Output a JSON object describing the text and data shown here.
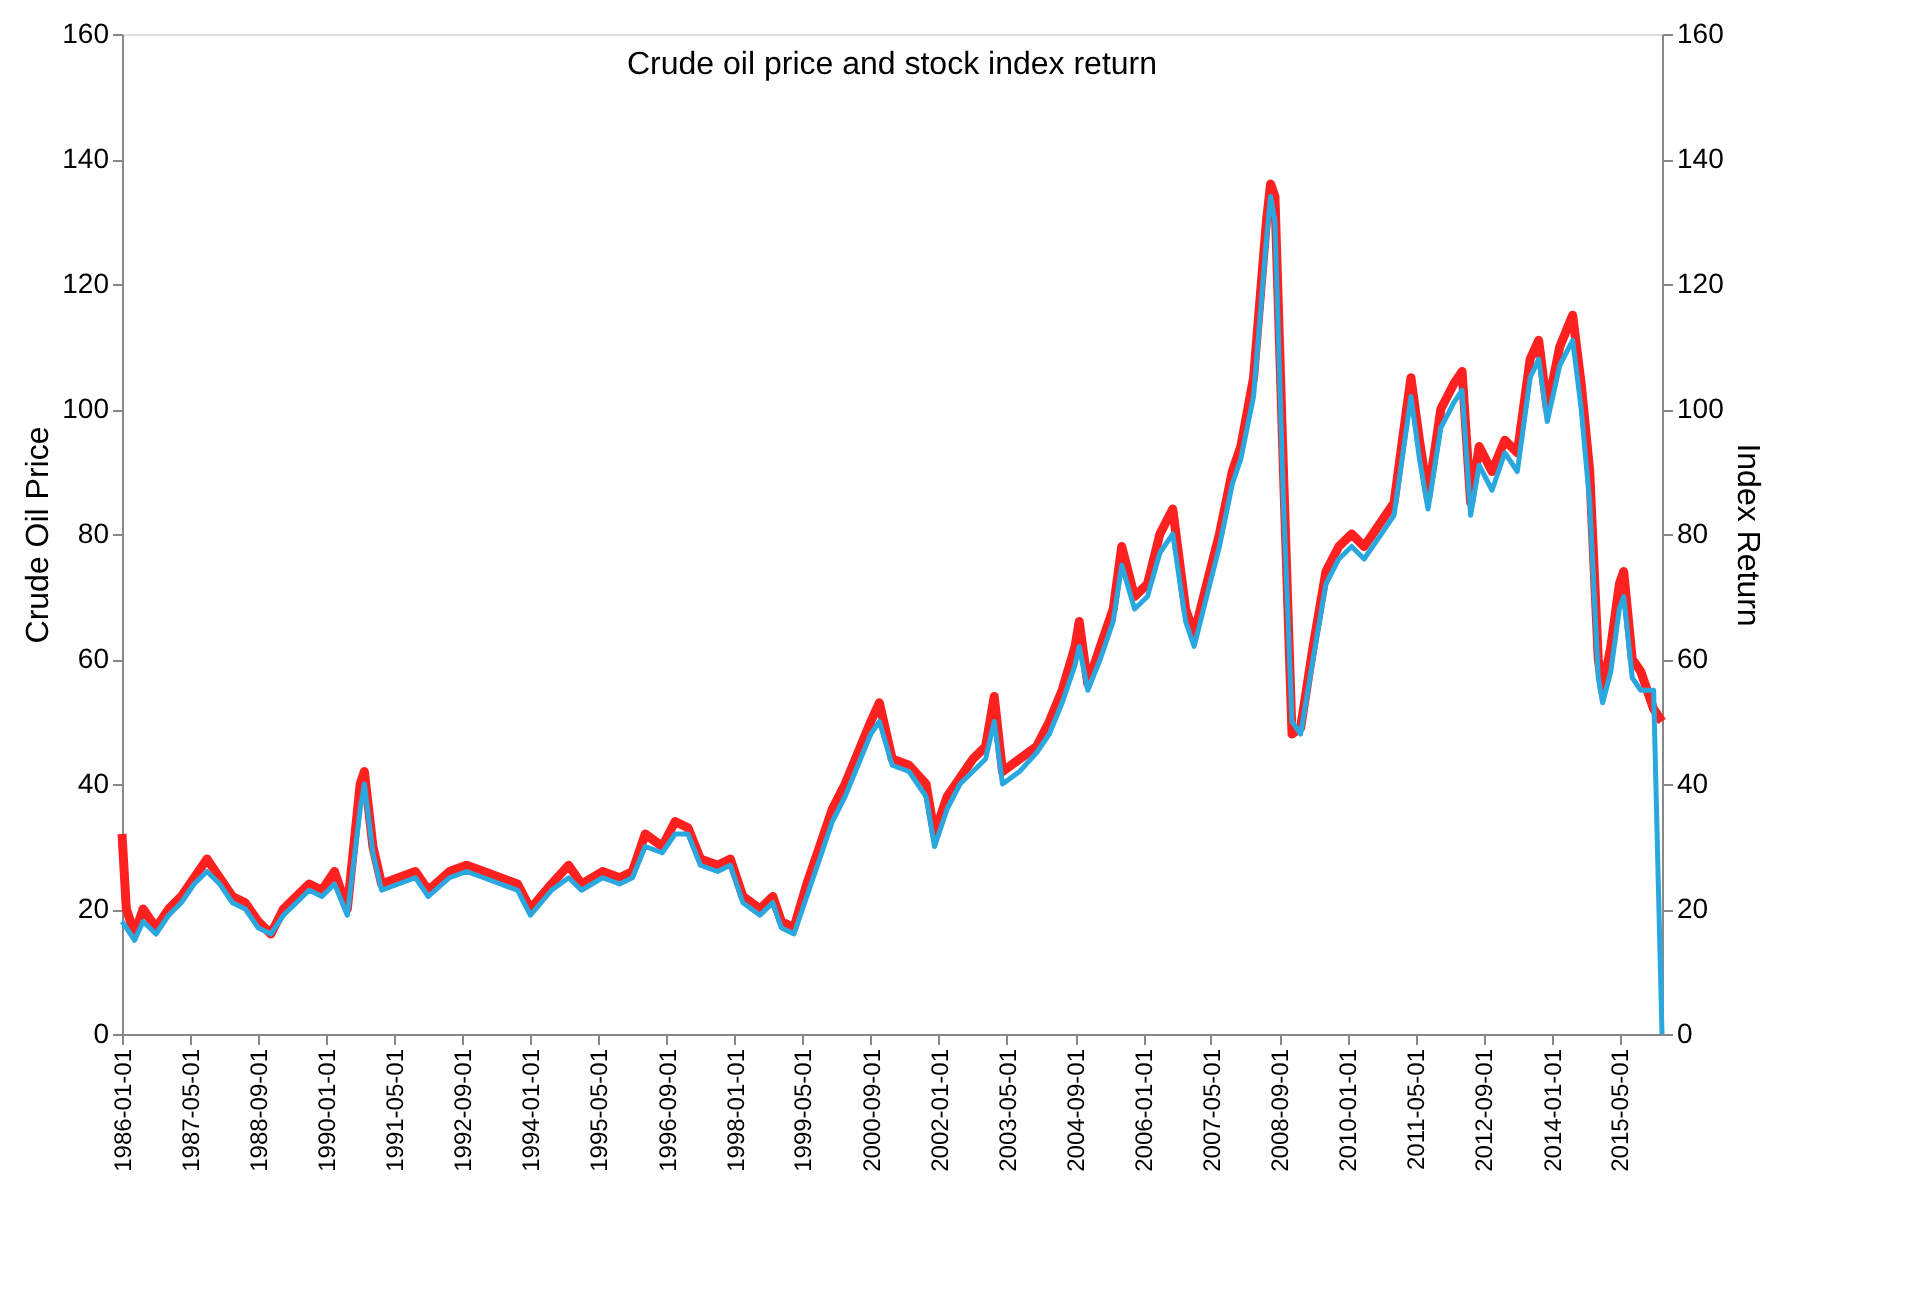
{
  "chart_data": {
    "type": "line",
    "title": "Crude oil price and stock index return",
    "ylabel": "Crude Oil Price",
    "y2label": "Index Return",
    "x": [
      "1986-01-01",
      "1986-02-01",
      "1986-04-01",
      "1986-06-01",
      "1986-09-01",
      "1986-12-01",
      "1987-03-01",
      "1987-06-01",
      "1987-09-01",
      "1987-12-01",
      "1988-03-01",
      "1988-06-01",
      "1988-09-01",
      "1988-12-01",
      "1989-03-01",
      "1989-06-01",
      "1989-09-01",
      "1989-12-01",
      "1990-03-01",
      "1990-06-01",
      "1990-09-01",
      "1990-10-01",
      "1990-12-01",
      "1991-02-01",
      "1991-06-01",
      "1991-10-01",
      "1992-01-01",
      "1992-06-01",
      "1992-10-01",
      "1993-02-01",
      "1993-06-01",
      "1993-10-01",
      "1994-01-01",
      "1994-06-01",
      "1994-10-01",
      "1995-01-01",
      "1995-06-01",
      "1995-10-01",
      "1996-01-01",
      "1996-04-01",
      "1996-08-01",
      "1996-11-01",
      "1997-02-01",
      "1997-05-01",
      "1997-09-01",
      "1997-12-01",
      "1998-03-01",
      "1998-07-01",
      "1998-10-01",
      "1998-12-01",
      "1999-03-01",
      "1999-06-01",
      "1999-09-01",
      "1999-12-01",
      "2000-03-01",
      "2000-06-01",
      "2000-09-01",
      "2000-11-01",
      "2001-02-01",
      "2001-06-01",
      "2001-10-01",
      "2001-12-01",
      "2002-03-01",
      "2002-06-01",
      "2002-09-01",
      "2002-12-01",
      "2003-02-01",
      "2003-04-01",
      "2003-08-01",
      "2003-12-01",
      "2004-03-01",
      "2004-06-01",
      "2004-09-01",
      "2004-10-01",
      "2004-12-01",
      "2005-03-01",
      "2005-06-01",
      "2005-08-01",
      "2005-11-01",
      "2006-02-01",
      "2006-05-01",
      "2006-08-01",
      "2006-11-01",
      "2007-01-01",
      "2007-04-01",
      "2007-07-01",
      "2007-10-01",
      "2007-12-01",
      "2008-03-01",
      "2008-06-01",
      "2008-07-01",
      "2008-08-01",
      "2008-10-01",
      "2008-12-01",
      "2009-02-01",
      "2009-05-01",
      "2009-08-01",
      "2009-11-01",
      "2010-02-01",
      "2010-05-01",
      "2010-09-01",
      "2010-12-01",
      "2011-03-01",
      "2011-04-01",
      "2011-06-01",
      "2011-08-01",
      "2011-11-01",
      "2012-02-01",
      "2012-04-01",
      "2012-06-01",
      "2012-08-01",
      "2012-11-01",
      "2013-02-01",
      "2013-05-01",
      "2013-08-01",
      "2013-10-01",
      "2013-12-01",
      "2014-03-01",
      "2014-06-01",
      "2014-08-01",
      "2014-10-01",
      "2014-12-01",
      "2015-01-01",
      "2015-03-01",
      "2015-05-01",
      "2015-06-01",
      "2015-08-01",
      "2015-10-01",
      "2016-01-01",
      "2016-03-01"
    ],
    "series": [
      {
        "color": "#ff2020",
        "values": [
          32,
          20,
          16,
          20,
          17,
          20,
          22,
          25,
          28,
          25,
          22,
          21,
          18,
          16,
          20,
          22,
          24,
          23,
          26,
          20,
          40,
          42,
          30,
          24,
          25,
          26,
          23,
          26,
          27,
          26,
          25,
          24,
          20,
          24,
          27,
          24,
          26,
          25,
          26,
          32,
          30,
          34,
          33,
          28,
          27,
          28,
          22,
          20,
          22,
          18,
          17,
          24,
          30,
          36,
          40,
          45,
          50,
          53,
          44,
          43,
          40,
          32,
          38,
          41,
          44,
          46,
          54,
          42,
          44,
          46,
          50,
          55,
          62,
          66,
          56,
          62,
          68,
          78,
          70,
          72,
          80,
          84,
          68,
          64,
          72,
          80,
          90,
          94,
          105,
          130,
          136,
          134,
          90,
          48,
          49,
          62,
          74,
          78,
          80,
          78,
          82,
          85,
          100,
          105,
          95,
          86,
          100,
          104,
          106,
          85,
          94,
          90,
          95,
          93,
          108,
          111,
          100,
          110,
          115,
          104,
          90,
          60,
          55,
          62,
          72,
          74,
          60,
          58,
          52,
          50
        ]
      },
      {
        "color": "#29a8e0",
        "axis": "y2",
        "values": [
          18,
          17,
          15,
          18,
          16,
          19,
          21,
          24,
          26,
          24,
          21,
          20,
          17,
          16,
          19,
          21,
          23,
          22,
          24,
          19,
          36,
          40,
          29,
          23,
          24,
          25,
          22,
          25,
          26,
          25,
          24,
          23,
          19,
          23,
          25,
          23,
          25,
          24,
          25,
          30,
          29,
          32,
          32,
          27,
          26,
          27,
          21,
          19,
          21,
          17,
          16,
          22,
          28,
          34,
          38,
          43,
          48,
          50,
          43,
          42,
          38,
          30,
          36,
          40,
          42,
          44,
          50,
          40,
          42,
          45,
          48,
          53,
          59,
          62,
          55,
          60,
          66,
          75,
          68,
          70,
          77,
          80,
          66,
          62,
          70,
          78,
          88,
          92,
          102,
          127,
          134,
          130,
          85,
          50,
          48,
          60,
          72,
          76,
          78,
          76,
          80,
          83,
          97,
          102,
          92,
          84,
          97,
          101,
          103,
          83,
          91,
          87,
          93,
          90,
          105,
          108,
          98,
          107,
          111,
          100,
          85,
          57,
          53,
          58,
          68,
          70,
          57,
          55,
          55,
          0
        ]
      }
    ],
    "ylim": [
      0,
      160
    ],
    "yticks": [
      0,
      20,
      40,
      60,
      80,
      100,
      120,
      140,
      160
    ],
    "y2lim": [
      0,
      160
    ],
    "y2ticks": [
      0,
      20,
      40,
      60,
      80,
      100,
      120,
      140,
      160
    ],
    "xlim": [
      "1986-01-01",
      "2016-03-01"
    ],
    "xticks": [
      "1986-01-01",
      "1987-05-01",
      "1988-09-01",
      "1990-01-01",
      "1991-05-01",
      "1992-09-01",
      "1994-01-01",
      "1995-05-01",
      "1996-09-01",
      "1998-01-01",
      "1999-05-01",
      "2000-09-01",
      "2002-01-01",
      "2003-05-01",
      "2004-09-01",
      "2006-01-01",
      "2007-05-01",
      "2008-09-01",
      "2010-01-01",
      "2011-05-01",
      "2012-09-01",
      "2014-01-01",
      "2015-05-01"
    ],
    "grid": false
  }
}
